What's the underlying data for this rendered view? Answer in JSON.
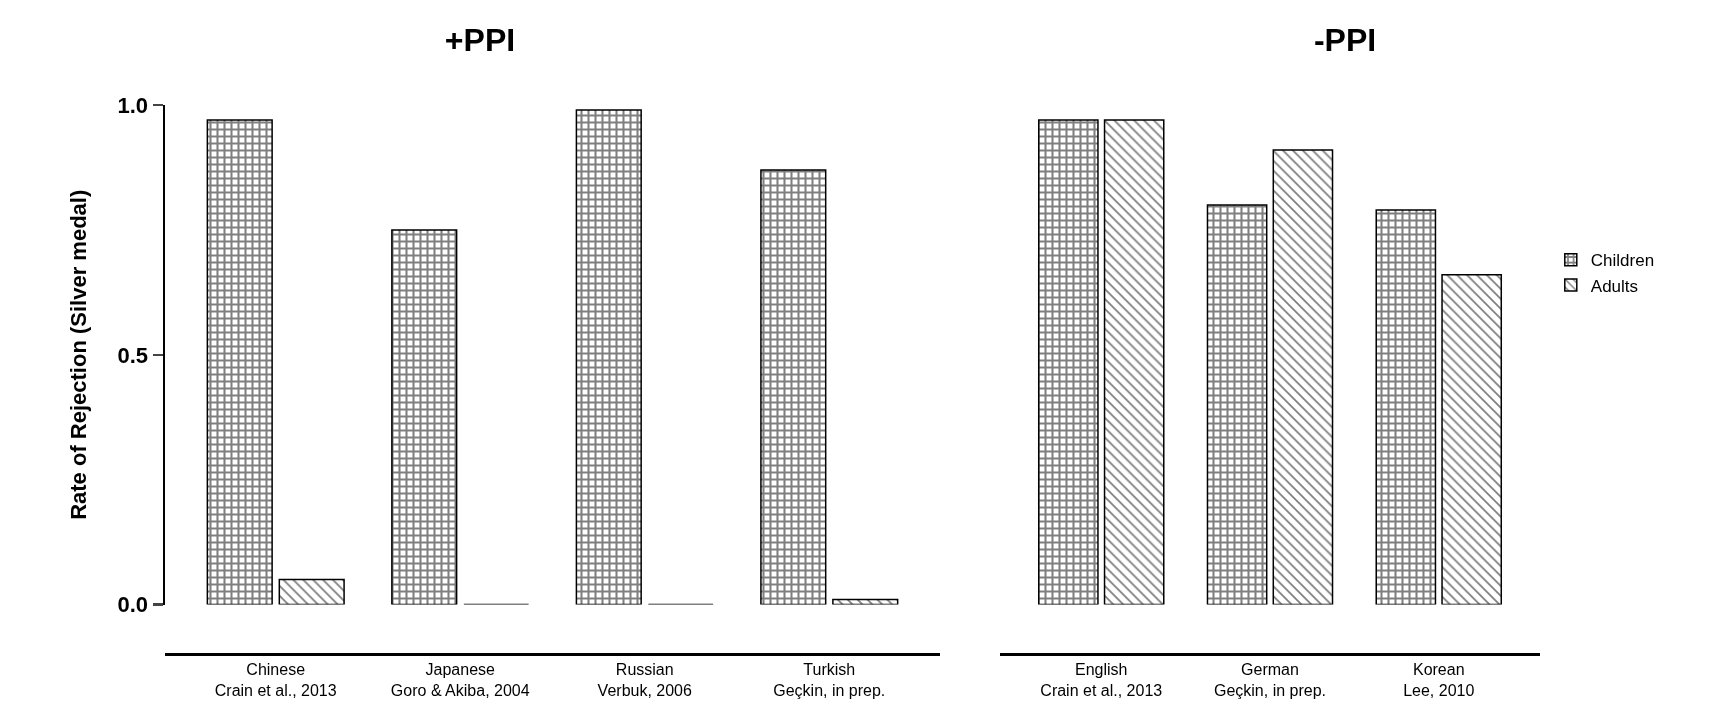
{
  "chart_data": [
    {
      "type": "bar",
      "title": "+PPI",
      "ylabel": "Rate of Rejection (Silver medal)",
      "categories": [
        "Chinese\nCrain et al., 2013",
        "Japanese\nGoro & Akiba, 2004",
        "Russian\nVerbuk, 2006",
        "Turkish\nGeçkin, in prep."
      ],
      "series": [
        {
          "color": "#000000",
          "values": [
            0.97,
            0.75,
            0.99,
            0.87
          ]
        },
        {
          "color": "#000000",
          "values": [
            0.05,
            0,
            0,
            0.01
          ]
        }
      ],
      "ylim": [
        0,
        1
      ],
      "yticks": [
        {
          "value": 0,
          "label": "0.0"
        },
        {
          "value": 0.5,
          "label": "0.5"
        },
        {
          "value": 1,
          "label": "1.0"
        }
      ]
    },
    {
      "type": "bar",
      "title": "-PPI",
      "categories": [
        "English\nCrain et al., 2013",
        "German\nGeçkin, in prep.",
        "Korean\nLee, 2010"
      ],
      "series": [
        {
          "name": "Children",
          "color": "#000000",
          "values": [
            0.97,
            0.8,
            0.79
          ]
        },
        {
          "name": "Adults",
          "color": "#000000",
          "values": [
            0.97,
            0.91,
            0.66
          ]
        }
      ],
      "ylim": [
        0,
        1
      ],
      "tick_labels": "x",
      "legend": "right"
    }
  ]
}
